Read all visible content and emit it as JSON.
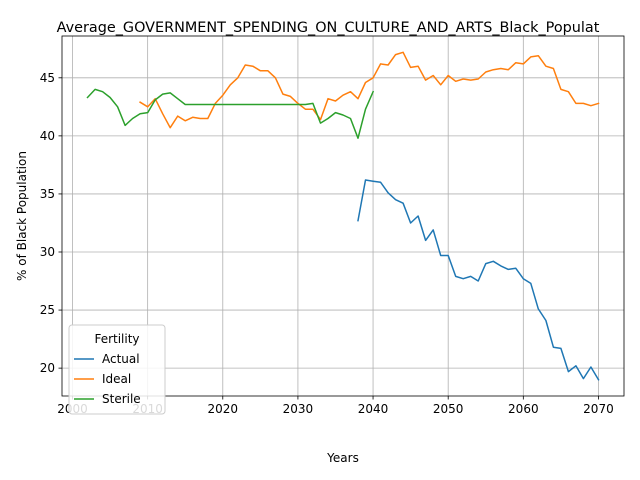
{
  "chart_data": {
    "type": "line",
    "title": "Average_GOVERNMENT_SPENDING_ON_CULTURE_AND_ARTS_Black_Populat",
    "xlabel": "Years",
    "ylabel": "% of Black Population",
    "xlim": [
      1998.6,
      2073.4
    ],
    "ylim": [
      17.6,
      48.6
    ],
    "xticks": [
      2000,
      2010,
      2020,
      2030,
      2040,
      2050,
      2060,
      2070
    ],
    "yticks": [
      20,
      25,
      30,
      35,
      40,
      45
    ],
    "grid": true,
    "legend": {
      "title": "Fertility",
      "position": "lower-left"
    },
    "series": [
      {
        "name": "Actual",
        "color": "#1f77b4",
        "x": [
          2038,
          2039,
          2040,
          2041,
          2042,
          2043,
          2044,
          2045,
          2046,
          2047,
          2048,
          2049,
          2050,
          2051,
          2052,
          2053,
          2054,
          2055,
          2056,
          2057,
          2058,
          2059,
          2060,
          2061,
          2062,
          2063,
          2064,
          2065,
          2066,
          2067,
          2068,
          2069,
          2070
        ],
        "y": [
          32.7,
          36.2,
          36.1,
          36.0,
          35.1,
          34.5,
          34.2,
          32.5,
          33.1,
          31.0,
          31.9,
          29.7,
          29.7,
          27.9,
          27.7,
          27.9,
          27.5,
          29.0,
          29.2,
          28.8,
          28.5,
          28.6,
          27.7,
          27.3,
          25.1,
          24.1,
          21.8,
          21.7,
          19.7,
          20.2,
          19.1,
          20.1,
          19.0
        ]
      },
      {
        "name": "Ideal",
        "color": "#ff7f0e",
        "x": [
          2009,
          2010,
          2011,
          2012,
          2013,
          2014,
          2015,
          2016,
          2017,
          2018,
          2019,
          2020,
          2021,
          2022,
          2023,
          2024,
          2025,
          2026,
          2027,
          2028,
          2029,
          2030,
          2031,
          2032,
          2033,
          2034,
          2035,
          2036,
          2037,
          2038,
          2039,
          2040,
          2041,
          2042,
          2043,
          2044,
          2045,
          2046,
          2047,
          2048,
          2049,
          2050,
          2051,
          2052,
          2053,
          2054,
          2055,
          2056,
          2057,
          2058,
          2059,
          2060,
          2061,
          2062,
          2063,
          2064,
          2065,
          2066,
          2067,
          2068,
          2069,
          2070
        ],
        "y": [
          42.9,
          42.5,
          43.2,
          41.9,
          40.7,
          41.7,
          41.3,
          41.6,
          41.5,
          41.5,
          42.8,
          43.5,
          44.4,
          45.0,
          46.1,
          46.0,
          45.6,
          45.6,
          45.0,
          43.6,
          43.4,
          42.8,
          42.3,
          42.3,
          41.4,
          43.2,
          43.0,
          43.5,
          43.8,
          43.2,
          44.6,
          45.0,
          46.2,
          46.1,
          47.0,
          47.2,
          45.9,
          46.0,
          44.8,
          45.2,
          44.4,
          45.2,
          44.7,
          44.9,
          44.8,
          44.9,
          45.5,
          45.7,
          45.8,
          45.7,
          46.3,
          46.2,
          46.8,
          46.9,
          46.0,
          45.8,
          44.0,
          43.8,
          42.8,
          42.8,
          42.6,
          42.8
        ]
      },
      {
        "name": "Sterile",
        "color": "#2ca02c",
        "x": [
          2002,
          2003,
          2004,
          2005,
          2006,
          2007,
          2008,
          2009,
          2010,
          2011,
          2012,
          2013,
          2014,
          2015,
          2016,
          2017,
          2018,
          2019,
          2020,
          2021,
          2022,
          2023,
          2024,
          2025,
          2026,
          2027,
          2028,
          2029,
          2030,
          2031,
          2032,
          2033,
          2034,
          2035,
          2036,
          2037,
          2038,
          2039,
          2040
        ],
        "y": [
          43.3,
          44.0,
          43.8,
          43.3,
          42.5,
          40.9,
          41.5,
          41.9,
          42.0,
          43.1,
          43.6,
          43.7,
          43.2,
          42.7,
          42.7,
          42.7,
          42.7,
          42.7,
          42.7,
          42.7,
          42.7,
          42.7,
          42.7,
          42.7,
          42.7,
          42.7,
          42.7,
          42.7,
          42.7,
          42.7,
          42.8,
          41.1,
          41.5,
          42.0,
          41.8,
          41.5,
          39.8,
          42.3,
          43.8
        ]
      }
    ]
  }
}
